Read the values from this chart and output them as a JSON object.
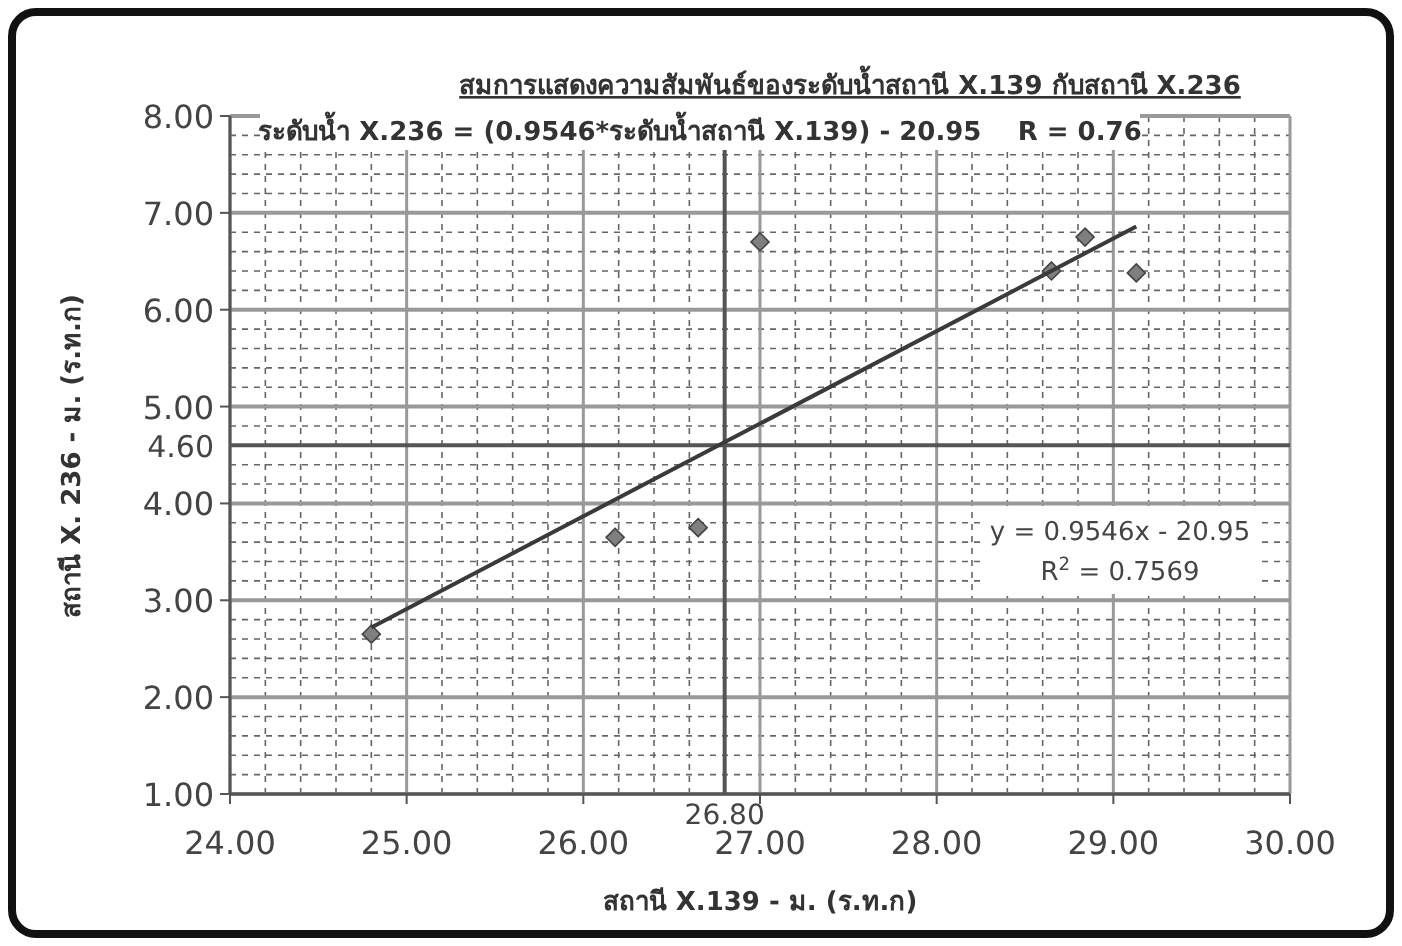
{
  "chart_data": {
    "type": "scatter",
    "title": "สมการแสดงความสัมพันธ์ของระดับน้ำสถานี X.139 กับสถานี X.236",
    "subtitle": "ระดับน้ำ X.236 = (0.9546*ระดับน้ำสถานี X.139) - 20.95    R = 0.76",
    "xlabel": "สถานี X.139 - ม. (ร.ท.ก)",
    "ylabel": "สถานี X. 236 - ม. (ร.ท.ก)",
    "xlim": [
      24,
      30
    ],
    "ylim": [
      1,
      8
    ],
    "xticks": [
      {
        "value": 24,
        "label": "24.00"
      },
      {
        "value": 25,
        "label": "25.00"
      },
      {
        "value": 26,
        "label": "26.00"
      },
      {
        "value": 27,
        "label": "27.00"
      },
      {
        "value": 28,
        "label": "28.00"
      },
      {
        "value": 29,
        "label": "29.00"
      },
      {
        "value": 30,
        "label": "30.00"
      }
    ],
    "yticks": [
      {
        "value": 1,
        "label": "1.00"
      },
      {
        "value": 2,
        "label": "2.00"
      },
      {
        "value": 3,
        "label": "3.00"
      },
      {
        "value": 4,
        "label": "4.00"
      },
      {
        "value": 5,
        "label": "5.00"
      },
      {
        "value": 6,
        "label": "6.00"
      },
      {
        "value": 7,
        "label": "7.00"
      },
      {
        "value": 8,
        "label": "8.00"
      }
    ],
    "grid": true,
    "marker": "diamond",
    "series": [
      {
        "color": "#7f7f7f",
        "x": [
          24.8,
          26.18,
          26.65,
          27.0,
          28.65,
          28.84,
          29.13
        ],
        "values": [
          2.65,
          3.65,
          3.75,
          6.7,
          6.4,
          6.75,
          6.38
        ]
      },
      {
        "type": "line",
        "color": "#3a3a3a",
        "marker": "none",
        "x": [
          24.8,
          29.13
        ],
        "values": [
          2.72,
          6.86
        ]
      }
    ],
    "ref_lines": [
      {
        "axis": "x",
        "value": 26.8,
        "label": "26.80",
        "color": "#555555"
      },
      {
        "axis": "y",
        "value": 4.6,
        "label": "4.60",
        "color": "#555555"
      }
    ],
    "annotations": [
      "y = 0.9546x - 20.95",
      "R$^{2}$ = 0.7569"
    ]
  }
}
